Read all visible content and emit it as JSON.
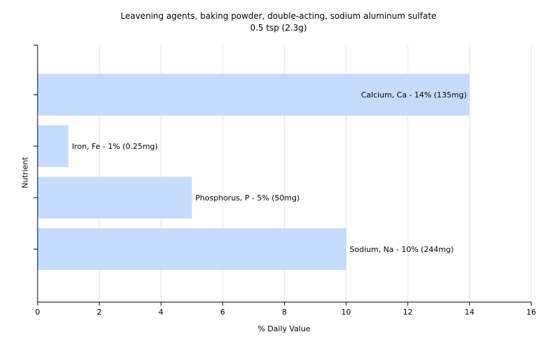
{
  "chart_data": {
    "type": "bar",
    "orientation": "horizontal",
    "title": "Leavening agents, baking powder, double-acting, sodium aluminum sulfate",
    "subtitle": "0.5 tsp (2.3g)",
    "xlabel": "% Daily Value",
    "ylabel": "Nutrient",
    "xlim": [
      0,
      16
    ],
    "xticks": [
      0,
      2,
      4,
      6,
      8,
      10,
      12,
      14,
      16
    ],
    "grid": true,
    "bar_color": "#c6dcff",
    "categories": [
      "Calcium, Ca",
      "Iron, Fe",
      "Phosphorus, P",
      "Sodium, Na"
    ],
    "values": [
      14,
      1,
      5,
      10
    ],
    "data_labels": [
      "Calcium, Ca - 14% (135mg)",
      "Iron, Fe - 1% (0.25mg)",
      "Phosphorus, P - 5% (50mg)",
      "Sodium, Na - 10% (244mg)"
    ]
  }
}
